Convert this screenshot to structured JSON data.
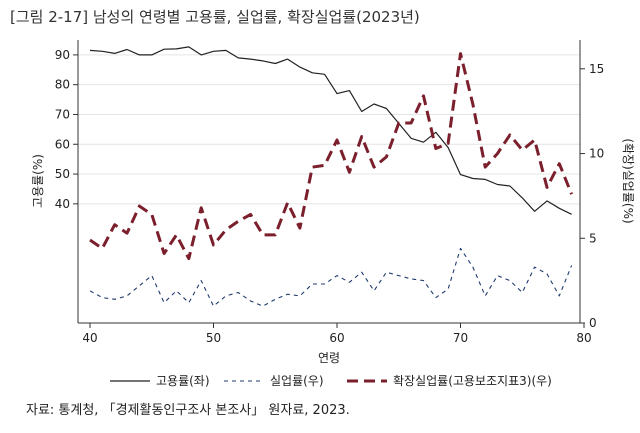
{
  "title": "[그림 2-17] 남성의 연령별 고용률, 실업률, 확장실업률(2023년)",
  "source": "자료: 통계청, 「경제활동인구조사 본조사」 원자료, 2023.",
  "chart_data": {
    "type": "line",
    "xlabel": "연령",
    "ylabel_left": "고용률(%)",
    "ylabel_right": "(확장)실업률(%)",
    "xlim": [
      40,
      80
    ],
    "xticks": [
      40,
      50,
      60,
      70,
      80
    ],
    "ylim_left": [
      0,
      95
    ],
    "yticks_left": [
      40,
      50,
      60,
      70,
      80,
      90
    ],
    "ylim_right": [
      0,
      16.7
    ],
    "yticks_right": [
      0,
      5,
      10,
      15
    ],
    "grid": true,
    "legend_position": "bottom",
    "x": [
      40,
      41,
      42,
      43,
      44,
      45,
      46,
      47,
      48,
      49,
      50,
      51,
      52,
      53,
      54,
      55,
      56,
      57,
      58,
      59,
      60,
      61,
      62,
      63,
      64,
      65,
      66,
      67,
      68,
      69,
      70,
      71,
      72,
      73,
      74,
      75,
      76,
      77,
      78,
      79
    ],
    "series": [
      {
        "name": "고용률(좌)",
        "axis": "left",
        "style": "solid",
        "color": "#222222",
        "values": [
          91.5,
          91.2,
          90.5,
          91.8,
          90,
          90,
          91.9,
          92,
          92.7,
          90,
          91.2,
          91.5,
          89,
          88.6,
          88,
          87.1,
          88.6,
          85.9,
          84,
          83.5,
          77,
          78,
          71,
          73.5,
          72,
          67,
          62,
          60.7,
          64,
          58.9,
          49.8,
          48.5,
          48.2,
          46.5,
          46,
          42,
          37.5,
          41,
          38.5,
          36.5
        ]
      },
      {
        "name": "실업률(우)",
        "axis": "right",
        "style": "dashed",
        "color": "#1f3a6e",
        "values": [
          1.9,
          1.5,
          1.4,
          1.6,
          2.2,
          2.8,
          1.2,
          1.9,
          1.2,
          2.5,
          1.0,
          1.6,
          1.8,
          1.3,
          1.0,
          1.4,
          1.7,
          1.6,
          2.3,
          2.3,
          2.8,
          2.4,
          3.0,
          1.9,
          3.0,
          2.8,
          2.6,
          2.5,
          1.5,
          2.0,
          4.4,
          3.3,
          1.6,
          2.8,
          2.5,
          1.8,
          3.3,
          2.9,
          1.6,
          3.4
        ]
      },
      {
        "name": "확장실업률(고용보조지표3)(우)",
        "axis": "right",
        "style": "dashed",
        "color": "#7a1f2b",
        "values": [
          4.9,
          4.4,
          5.8,
          5.3,
          6.9,
          6.4,
          4.1,
          5.2,
          3.8,
          6.8,
          4.6,
          5.5,
          6.0,
          6.4,
          5.2,
          5.2,
          7.1,
          5.6,
          9.2,
          9.3,
          10.8,
          8.9,
          11.0,
          9.2,
          9.8,
          11.8,
          11.8,
          13.4,
          10.3,
          10.6,
          15.9,
          12.9,
          9.2,
          10.0,
          11.1,
          10.2,
          10.8,
          8.0,
          9.4,
          7.6
        ]
      }
    ]
  }
}
